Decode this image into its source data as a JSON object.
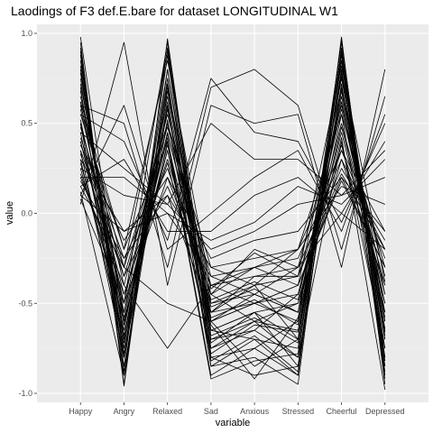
{
  "chart_data": {
    "type": "line",
    "title": "Laodings of F3 def.E.bare for dataset LONGITUDINAL W1",
    "xlabel": "variable",
    "ylabel": "value",
    "categories": [
      "Happy",
      "Angry",
      "Relaxed",
      "Sad",
      "Anxious",
      "Stressed",
      "Cheerful",
      "Depressed"
    ],
    "ylim": [
      -1.05,
      1.05
    ],
    "yticks": [
      -1.0,
      -0.5,
      0.0,
      0.5,
      1.0
    ],
    "ytick_labels": [
      "-1.0",
      "-0.5",
      "0.0",
      "0.5",
      "1.0"
    ],
    "grid": true,
    "background": "#ebebeb",
    "line_color": "#000000",
    "series": [
      {
        "values": [
          0.98,
          -0.62,
          0.45,
          -0.55,
          -0.4,
          -0.7,
          0.95,
          -0.8
        ]
      },
      {
        "values": [
          0.95,
          -0.95,
          0.97,
          -0.72,
          -0.55,
          -0.85,
          0.9,
          -0.9
        ]
      },
      {
        "values": [
          0.9,
          -0.85,
          0.88,
          -0.8,
          -0.75,
          -0.9,
          0.98,
          -0.95
        ]
      },
      {
        "values": [
          0.85,
          -0.8,
          0.92,
          -0.6,
          -0.5,
          -0.6,
          0.85,
          -0.7
        ]
      },
      {
        "values": [
          0.8,
          -0.75,
          0.8,
          -0.65,
          -0.7,
          -0.75,
          0.8,
          -0.6
        ]
      },
      {
        "values": [
          0.75,
          -0.7,
          0.7,
          -0.5,
          -0.45,
          -0.55,
          0.75,
          -0.55
        ]
      },
      {
        "values": [
          0.72,
          -0.55,
          0.65,
          -0.45,
          -0.3,
          -0.4,
          0.7,
          -0.45
        ]
      },
      {
        "values": [
          0.7,
          -0.9,
          0.75,
          -0.85,
          -0.8,
          -0.95,
          0.92,
          -0.85
        ]
      },
      {
        "values": [
          0.65,
          -0.4,
          0.55,
          -0.4,
          -0.35,
          -0.3,
          0.6,
          -0.35
        ]
      },
      {
        "values": [
          0.62,
          -0.65,
          0.6,
          -0.7,
          -0.6,
          -0.65,
          0.65,
          -0.65
        ]
      },
      {
        "values": [
          0.6,
          -0.3,
          0.5,
          -0.3,
          -0.25,
          -0.2,
          0.55,
          -0.3
        ]
      },
      {
        "values": [
          0.58,
          -0.5,
          0.62,
          -0.55,
          -0.5,
          -0.45,
          0.5,
          -0.4
        ]
      },
      {
        "values": [
          0.55,
          -0.2,
          0.4,
          -0.65,
          -0.55,
          -0.5,
          0.45,
          -0.5
        ]
      },
      {
        "values": [
          0.52,
          -0.6,
          0.35,
          -0.75,
          -0.65,
          -0.8,
          0.4,
          -0.75
        ]
      },
      {
        "values": [
          0.5,
          -0.45,
          0.3,
          -0.5,
          -0.4,
          -0.35,
          0.35,
          -0.25
        ]
      },
      {
        "values": [
          0.48,
          -0.35,
          0.48,
          -0.35,
          -0.3,
          -0.25,
          0.3,
          -0.2
        ]
      },
      {
        "values": [
          0.45,
          -0.7,
          0.58,
          -0.6,
          -0.85,
          -0.7,
          0.68,
          -0.6
        ]
      },
      {
        "values": [
          0.42,
          -0.25,
          0.25,
          -0.45,
          -0.2,
          -0.3,
          0.25,
          -0.15
        ]
      },
      {
        "values": [
          0.4,
          -0.55,
          0.42,
          -0.9,
          -0.75,
          -0.6,
          0.55,
          -0.8
        ]
      },
      {
        "values": [
          0.38,
          -0.15,
          0.2,
          -0.25,
          -0.15,
          -0.1,
          0.2,
          -0.1
        ]
      },
      {
        "values": [
          0.35,
          -0.8,
          0.52,
          -0.8,
          -0.9,
          -0.85,
          0.72,
          -0.7
        ]
      },
      {
        "values": [
          0.33,
          -0.35,
          0.15,
          -0.4,
          -0.5,
          -0.4,
          0.18,
          -0.3
        ]
      },
      {
        "values": [
          0.3,
          -0.1,
          0.1,
          -0.3,
          -0.4,
          -0.2,
          0.15,
          0.05
        ]
      },
      {
        "values": [
          0.28,
          -0.6,
          0.38,
          -0.6,
          -0.45,
          -0.55,
          0.48,
          -0.45
        ]
      },
      {
        "values": [
          0.25,
          0.1,
          0.05,
          -0.2,
          -0.1,
          0.05,
          0.1,
          0.2
        ]
      },
      {
        "values": [
          0.22,
          -0.45,
          0.28,
          -0.7,
          -0.65,
          -0.45,
          0.38,
          -0.55
        ]
      },
      {
        "values": [
          0.2,
          0.2,
          0.0,
          -0.15,
          -0.05,
          0.15,
          0.05,
          0.3
        ]
      },
      {
        "values": [
          0.18,
          -0.25,
          0.1,
          -0.55,
          -0.35,
          -0.35,
          0.22,
          -0.2
        ]
      },
      {
        "values": [
          0.15,
          0.3,
          -0.1,
          -0.1,
          0.1,
          0.2,
          0.0,
          0.4
        ]
      },
      {
        "values": [
          0.12,
          -0.9,
          0.6,
          -0.85,
          -0.7,
          -0.9,
          0.85,
          -0.85
        ]
      },
      {
        "values": [
          0.1,
          0.6,
          -0.2,
          0.0,
          0.2,
          0.35,
          -0.1,
          0.55
        ]
      },
      {
        "values": [
          0.08,
          -0.5,
          0.2,
          -0.45,
          -0.6,
          -0.5,
          0.3,
          -0.4
        ]
      },
      {
        "values": [
          0.05,
          0.95,
          -0.4,
          0.6,
          0.5,
          0.55,
          -0.3,
          0.8
        ]
      },
      {
        "values": [
          0.92,
          -0.96,
          0.8,
          -0.75,
          -0.6,
          -0.8,
          0.88,
          -0.88
        ]
      },
      {
        "values": [
          0.88,
          -0.88,
          0.68,
          -0.65,
          -0.55,
          -0.7,
          0.78,
          -0.75
        ]
      },
      {
        "values": [
          0.82,
          -0.78,
          0.58,
          -0.58,
          -0.48,
          -0.62,
          0.7,
          -0.68
        ]
      },
      {
        "values": [
          0.78,
          -0.68,
          0.5,
          -0.52,
          -0.42,
          -0.55,
          0.62,
          -0.58
        ]
      },
      {
        "values": [
          0.68,
          -0.58,
          0.44,
          -0.48,
          -0.38,
          -0.48,
          0.58,
          -0.5
        ]
      },
      {
        "values": [
          0.6,
          0.5,
          -0.3,
          0.7,
          0.8,
          0.6,
          -0.2,
          0.65
        ]
      },
      {
        "values": [
          0.55,
          0.4,
          -0.15,
          0.75,
          0.45,
          0.4,
          -0.05,
          0.5
        ]
      },
      {
        "values": [
          0.45,
          0.25,
          0.05,
          0.5,
          0.3,
          0.3,
          0.1,
          0.35
        ]
      },
      {
        "values": [
          0.3,
          -0.72,
          0.4,
          -0.92,
          -0.82,
          -0.78,
          0.8,
          -0.92
        ]
      },
      {
        "values": [
          0.25,
          -0.6,
          0.35,
          -0.62,
          -0.92,
          -0.58,
          0.42,
          -0.98
        ]
      },
      {
        "values": [
          0.2,
          -0.4,
          -0.75,
          -0.4,
          -0.3,
          -0.2,
          0.35,
          -0.1
        ]
      },
      {
        "values": [
          0.15,
          -0.3,
          -0.5,
          -0.6,
          -0.5,
          -0.4,
          0.2,
          -0.3
        ]
      },
      {
        "values": [
          0.4,
          -0.5,
          0.95,
          -0.82,
          -0.68,
          -0.88,
          0.96,
          -0.82
        ]
      },
      {
        "values": [
          0.35,
          -0.3,
          0.9,
          -0.68,
          -0.58,
          -0.72,
          0.9,
          -0.66
        ]
      },
      {
        "values": [
          0.62,
          -0.2,
          0.85,
          -0.42,
          -0.22,
          -0.35,
          0.82,
          -0.38
        ]
      },
      {
        "values": [
          0.5,
          -0.8,
          0.72,
          -0.78,
          -0.62,
          -0.66,
          0.76,
          -0.64
        ]
      },
      {
        "values": [
          0.1,
          -0.1,
          0.0,
          -0.35,
          -0.45,
          -0.3,
          0.0,
          -0.2
        ]
      }
    ]
  }
}
